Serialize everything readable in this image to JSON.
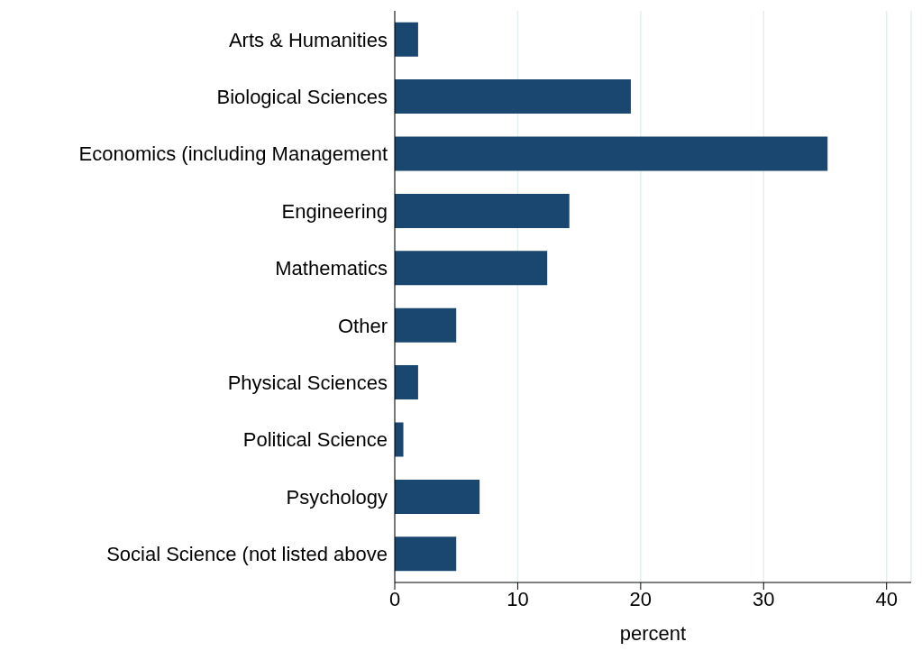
{
  "chart_data": {
    "type": "bar",
    "orientation": "horizontal",
    "categories": [
      "Arts & Humanities",
      "Biological Sciences",
      "Economics (including Management",
      "Engineering",
      "Mathematics",
      "Other",
      "Physical Sciences",
      "Political Science",
      "Psychology",
      "Social Science (not listed above"
    ],
    "values": [
      1.9,
      19.2,
      35.2,
      14.2,
      12.4,
      5.0,
      1.9,
      0.7,
      6.9,
      5.0
    ],
    "color": "#1a476f",
    "xlabel": "percent",
    "xlim": [
      0,
      42
    ],
    "xticks": [
      0,
      10,
      20,
      30,
      40
    ],
    "grid": "x"
  }
}
